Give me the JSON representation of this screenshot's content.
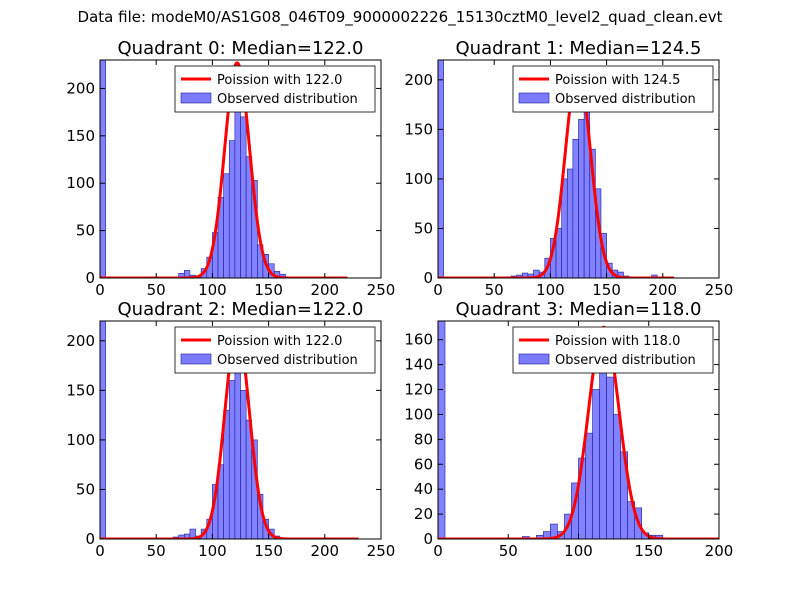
{
  "suptitle": "Data file: modeM0/AS1G08_046T09_9000002226_15130cztM0_level2_quad_clean.evt",
  "colors": {
    "poisson": "#ff0000",
    "bars_fill": "#7b7bff",
    "bars_edge": "#1c1c9e"
  },
  "chart_data": [
    {
      "type": "bar",
      "title": "Quadrant 0: Median=122.0",
      "xlim": [
        0,
        250
      ],
      "ylim": [
        0,
        230
      ],
      "xticks": [
        0,
        50,
        100,
        150,
        200,
        250
      ],
      "yticks": [
        0,
        50,
        100,
        150,
        200
      ],
      "legend": [
        "Poission with 122.0",
        "Observed distribution"
      ],
      "legend_position": "top-right",
      "bin_width": 5,
      "bins": [
        {
          "x": 0,
          "h": 230
        },
        {
          "x": 70,
          "h": 5
        },
        {
          "x": 75,
          "h": 8
        },
        {
          "x": 80,
          "h": 3
        },
        {
          "x": 85,
          "h": 2
        },
        {
          "x": 90,
          "h": 10
        },
        {
          "x": 95,
          "h": 22
        },
        {
          "x": 100,
          "h": 48
        },
        {
          "x": 105,
          "h": 85
        },
        {
          "x": 110,
          "h": 110
        },
        {
          "x": 115,
          "h": 145
        },
        {
          "x": 120,
          "h": 180
        },
        {
          "x": 125,
          "h": 170
        },
        {
          "x": 130,
          "h": 128
        },
        {
          "x": 135,
          "h": 103
        },
        {
          "x": 140,
          "h": 35
        },
        {
          "x": 145,
          "h": 25
        },
        {
          "x": 150,
          "h": 15
        },
        {
          "x": 155,
          "h": 7
        },
        {
          "x": 160,
          "h": 4
        },
        {
          "x": 165,
          "h": 1
        }
      ],
      "poisson": {
        "mu": 122.0,
        "peak": 227,
        "sigma": 11.0,
        "x_range": [
          0,
          220
        ]
      }
    },
    {
      "type": "bar",
      "title": "Quadrant 1: Median=124.5",
      "xlim": [
        0,
        250
      ],
      "ylim": [
        0,
        220
      ],
      "xticks": [
        0,
        50,
        100,
        150,
        200,
        250
      ],
      "yticks": [
        0,
        50,
        100,
        150,
        200
      ],
      "legend": [
        "Poission with 124.5",
        "Observed distribution"
      ],
      "legend_position": "top-right",
      "bin_width": 5,
      "bins": [
        {
          "x": 0,
          "h": 220
        },
        {
          "x": 60,
          "h": 1
        },
        {
          "x": 65,
          "h": 2
        },
        {
          "x": 70,
          "h": 3
        },
        {
          "x": 75,
          "h": 5
        },
        {
          "x": 80,
          "h": 4
        },
        {
          "x": 85,
          "h": 8
        },
        {
          "x": 90,
          "h": 6
        },
        {
          "x": 95,
          "h": 20
        },
        {
          "x": 100,
          "h": 40
        },
        {
          "x": 105,
          "h": 50
        },
        {
          "x": 110,
          "h": 100
        },
        {
          "x": 115,
          "h": 110
        },
        {
          "x": 120,
          "h": 140
        },
        {
          "x": 125,
          "h": 160
        },
        {
          "x": 130,
          "h": 190
        },
        {
          "x": 135,
          "h": 130
        },
        {
          "x": 140,
          "h": 90
        },
        {
          "x": 145,
          "h": 45
        },
        {
          "x": 150,
          "h": 15
        },
        {
          "x": 155,
          "h": 8
        },
        {
          "x": 160,
          "h": 6
        },
        {
          "x": 165,
          "h": 2
        },
        {
          "x": 190,
          "h": 3
        }
      ],
      "poisson": {
        "mu": 124.5,
        "peak": 210,
        "sigma": 11.2,
        "x_range": [
          0,
          210
        ]
      }
    },
    {
      "type": "bar",
      "title": "Quadrant 2: Median=122.0",
      "xlim": [
        0,
        250
      ],
      "ylim": [
        0,
        220
      ],
      "xticks": [
        0,
        50,
        100,
        150,
        200,
        250
      ],
      "yticks": [
        0,
        50,
        100,
        150,
        200
      ],
      "legend": [
        "Poission with 122.0",
        "Observed distribution"
      ],
      "legend_position": "top-right",
      "bin_width": 5,
      "bins": [
        {
          "x": 0,
          "h": 220
        },
        {
          "x": 65,
          "h": 2
        },
        {
          "x": 70,
          "h": 4
        },
        {
          "x": 75,
          "h": 5
        },
        {
          "x": 80,
          "h": 10
        },
        {
          "x": 85,
          "h": 3
        },
        {
          "x": 90,
          "h": 10
        },
        {
          "x": 95,
          "h": 20
        },
        {
          "x": 100,
          "h": 55
        },
        {
          "x": 105,
          "h": 75
        },
        {
          "x": 110,
          "h": 130
        },
        {
          "x": 115,
          "h": 160
        },
        {
          "x": 120,
          "h": 200
        },
        {
          "x": 125,
          "h": 150
        },
        {
          "x": 130,
          "h": 120
        },
        {
          "x": 135,
          "h": 100
        },
        {
          "x": 140,
          "h": 45
        },
        {
          "x": 145,
          "h": 20
        },
        {
          "x": 150,
          "h": 10
        },
        {
          "x": 155,
          "h": 3
        }
      ],
      "poisson": {
        "mu": 122.0,
        "peak": 210,
        "sigma": 11.0,
        "x_range": [
          0,
          230
        ]
      }
    },
    {
      "type": "bar",
      "title": "Quadrant 3: Median=118.0",
      "xlim": [
        0,
        200
      ],
      "ylim": [
        0,
        175
      ],
      "xticks": [
        0,
        50,
        100,
        150,
        200
      ],
      "yticks": [
        0,
        20,
        40,
        60,
        80,
        100,
        120,
        140,
        160
      ],
      "legend": [
        "Poission with 118.0",
        "Observed distribution"
      ],
      "legend_position": "top-right",
      "bin_width": 5,
      "bins": [
        {
          "x": 0,
          "h": 175
        },
        {
          "x": 60,
          "h": 2
        },
        {
          "x": 70,
          "h": 3
        },
        {
          "x": 75,
          "h": 6
        },
        {
          "x": 80,
          "h": 12
        },
        {
          "x": 85,
          "h": 6
        },
        {
          "x": 90,
          "h": 20
        },
        {
          "x": 95,
          "h": 45
        },
        {
          "x": 100,
          "h": 65
        },
        {
          "x": 105,
          "h": 85
        },
        {
          "x": 110,
          "h": 120
        },
        {
          "x": 115,
          "h": 150
        },
        {
          "x": 120,
          "h": 130
        },
        {
          "x": 125,
          "h": 100
        },
        {
          "x": 130,
          "h": 70
        },
        {
          "x": 135,
          "h": 30
        },
        {
          "x": 140,
          "h": 25
        },
        {
          "x": 145,
          "h": 5
        },
        {
          "x": 150,
          "h": 3
        },
        {
          "x": 155,
          "h": 3
        }
      ],
      "poisson": {
        "mu": 118.0,
        "peak": 170,
        "sigma": 10.9,
        "x_range": [
          0,
          200
        ]
      }
    }
  ]
}
